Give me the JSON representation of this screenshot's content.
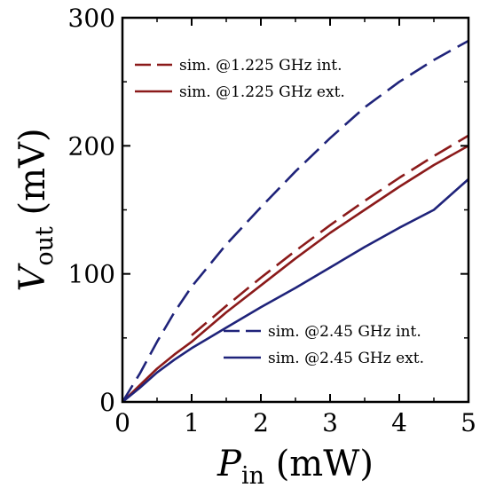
{
  "chart_data": {
    "type": "line",
    "xlabel_main": "P",
    "xlabel_sub": "in",
    "xlabel_unit": " (mW)",
    "ylabel_main": "V",
    "ylabel_sub": "out",
    "ylabel_unit": " (mV)",
    "xlim": [
      0,
      5
    ],
    "ylim": [
      0,
      300
    ],
    "x_ticks": [
      0,
      1,
      2,
      3,
      4,
      5
    ],
    "x_tick_labels": [
      "0",
      "1",
      "2",
      "3",
      "4",
      "5"
    ],
    "y_ticks": [
      0,
      100,
      200,
      300
    ],
    "y_tick_labels": [
      "0",
      "100",
      "200",
      "300"
    ],
    "grid": false,
    "legend_placement": [
      "top-left",
      "bottom-right"
    ],
    "series": [
      {
        "name": "sim. @1.225 GHz int.",
        "color": "#8b1a1a",
        "dash": "dashed",
        "legend_group": 0,
        "x": [
          1.0,
          1.5,
          2.0,
          2.5,
          3.0,
          3.5,
          4.0,
          4.5,
          5.0
        ],
        "y": [
          52,
          75,
          97,
          118,
          138,
          157,
          175,
          192,
          208
        ]
      },
      {
        "name": "sim. @1.225 GHz ext.",
        "color": "#8b1a1a",
        "dash": "solid",
        "legend_group": 0,
        "x": [
          0,
          0.25,
          0.5,
          0.75,
          1.0,
          1.5,
          2.0,
          2.5,
          3.0,
          3.5,
          4.0,
          4.5,
          5.0
        ],
        "y": [
          0,
          13,
          26,
          37,
          47,
          70,
          91,
          112,
          132,
          150,
          168,
          185,
          200
        ]
      },
      {
        "name": "sim. @2.45 GHz int.",
        "color": "#1f237a",
        "dash": "dashed",
        "legend_group": 1,
        "x": [
          0,
          0.25,
          0.5,
          0.75,
          1.0,
          1.5,
          2.0,
          2.5,
          3.0,
          3.5,
          4.0,
          4.5,
          5.0
        ],
        "y": [
          0,
          22,
          47,
          70,
          90,
          123,
          152,
          180,
          206,
          230,
          250,
          267,
          282
        ]
      },
      {
        "name": "sim. @2.45 GHz ext.",
        "color": "#1f237a",
        "dash": "solid",
        "legend_group": 1,
        "x": [
          0,
          0.25,
          0.5,
          0.75,
          1.0,
          1.5,
          2.0,
          2.5,
          3.0,
          3.5,
          4.0,
          4.5,
          5.0
        ],
        "y": [
          0,
          11,
          23,
          33,
          42,
          58,
          74,
          89,
          105,
          121,
          136,
          150,
          174
        ]
      }
    ]
  }
}
